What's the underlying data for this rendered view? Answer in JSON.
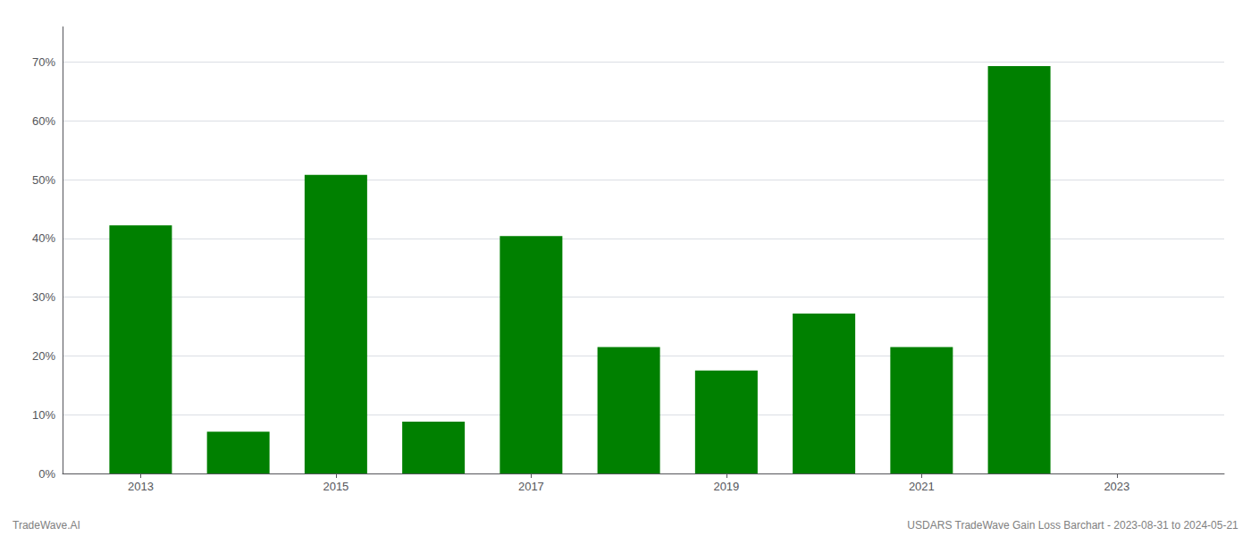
{
  "chart_data": {
    "type": "bar",
    "x": [
      2013,
      2014,
      2015,
      2016,
      2017,
      2018,
      2019,
      2020,
      2021,
      2022,
      2023
    ],
    "values": [
      0.422,
      0.071,
      0.508,
      0.088,
      0.404,
      0.215,
      0.175,
      0.272,
      0.215,
      0.693,
      0.0
    ],
    "color": "#008000",
    "xlim": [
      2012.2,
      2024.1
    ],
    "xticks": [
      2013,
      2015,
      2017,
      2019,
      2021,
      2023
    ],
    "ylim": [
      0,
      0.76
    ],
    "yticks": [
      {
        "value": 0.0,
        "label": "0%"
      },
      {
        "value": 0.1,
        "label": "10%"
      },
      {
        "value": 0.2,
        "label": "20%"
      },
      {
        "value": 0.3,
        "label": "30%"
      },
      {
        "value": 0.4,
        "label": "40%"
      },
      {
        "value": 0.5,
        "label": "50%"
      },
      {
        "value": 0.6,
        "label": "60%"
      },
      {
        "value": 0.7,
        "label": "70%"
      }
    ],
    "grid": true,
    "annotations": [
      "TradeWave.AI",
      "USDARS TradeWave Gain Loss Barchart - 2023-08-31 to 2024-05-21"
    ]
  }
}
